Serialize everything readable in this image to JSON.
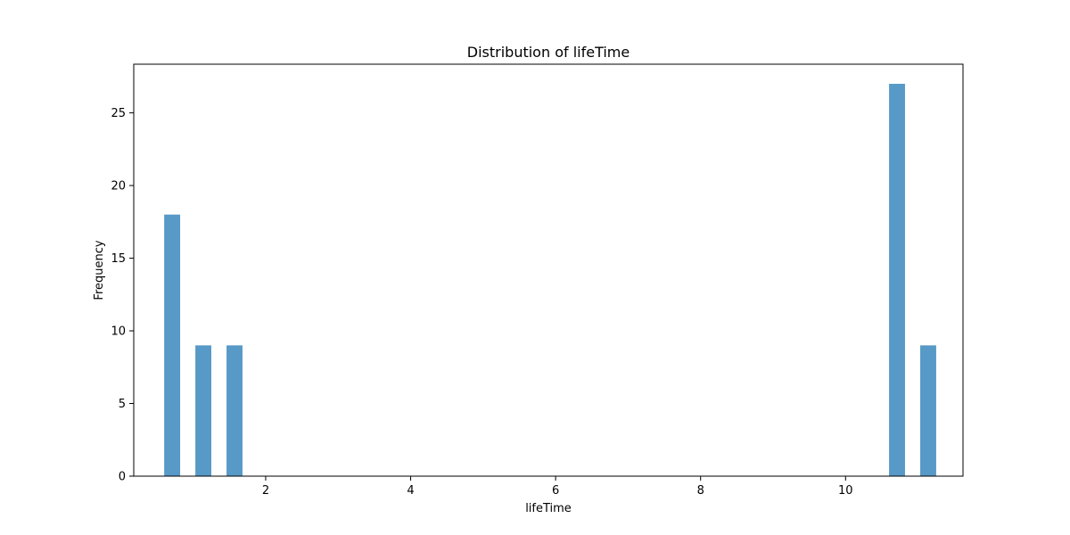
{
  "chart_data": {
    "type": "bar",
    "title": "Distribution of lifeTime",
    "xlabel": "lifeTime",
    "ylabel": "Frequency",
    "xlim": [
      0.18,
      11.62
    ],
    "ylim": [
      0,
      28.35
    ],
    "xticks": [
      2,
      4,
      6,
      8,
      10
    ],
    "yticks": [
      0,
      5,
      10,
      15,
      20,
      25
    ],
    "grid": false,
    "bar_color": "#5799c7",
    "bins": [
      {
        "x_start": 0.6,
        "x_end": 0.82,
        "value": 18
      },
      {
        "x_start": 1.03,
        "x_end": 1.25,
        "value": 9
      },
      {
        "x_start": 1.46,
        "x_end": 1.68,
        "value": 9
      },
      {
        "x_start": 10.6,
        "x_end": 10.82,
        "value": 27
      },
      {
        "x_start": 11.03,
        "x_end": 11.25,
        "value": 9
      }
    ]
  }
}
